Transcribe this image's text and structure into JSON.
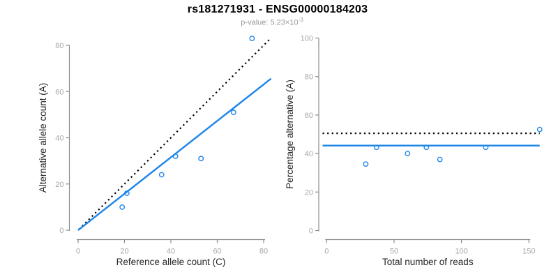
{
  "figure": {
    "title": "rs181271931 - ENSG00000184203",
    "subtitle_label": "p-value: ",
    "p_value_base": "5.23×10",
    "p_value_exponent": "-3"
  },
  "colors": {
    "accent_blue": "#1F87E8",
    "dotted_line_black": "#000000",
    "axis_line_gray": "#8C8C8C",
    "tick_label_gray": "#A6A6A6",
    "axis_title_dark": "#262626",
    "title_black": "#000000",
    "subtitle_gray": "#999999",
    "background_white": "#FFFFFF"
  },
  "chart_data": [
    {
      "type": "scatter",
      "name": "allele-counts-scatter",
      "title": "",
      "xlabel": "Reference allele count (C)",
      "ylabel": "Alternative allele count (A)",
      "xlim": [
        0,
        83
      ],
      "ylim": [
        0,
        83
      ],
      "xticks": [
        0,
        20,
        40,
        60,
        80
      ],
      "yticks": [
        0,
        20,
        40,
        60,
        80
      ],
      "grid": false,
      "legend": "none",
      "marker": "open-circle",
      "marker_color": "#1F87E8",
      "points": [
        [
          19,
          10
        ],
        [
          21,
          16
        ],
        [
          36,
          24
        ],
        [
          42,
          32
        ],
        [
          53,
          31
        ],
        [
          67,
          51
        ],
        [
          75,
          83
        ]
      ],
      "lines": [
        {
          "name": "identity-line",
          "style": "dotted",
          "color": "#000000",
          "from": [
            0.3,
            0.3
          ],
          "to": [
            82.5,
            82.5
          ]
        },
        {
          "name": "fitted-ratio-line",
          "style": "solid",
          "color": "#1F87E8",
          "from": [
            0,
            0
          ],
          "to": [
            83.2,
            65.6
          ]
        }
      ]
    },
    {
      "type": "scatter",
      "name": "percentage-vs-reads-scatter",
      "title": "",
      "xlabel": "Total number of reads",
      "ylabel": "Percentage alternative (A)",
      "xlim": [
        0,
        158
      ],
      "ylim": [
        0,
        100
      ],
      "xticks": [
        0,
        50,
        100,
        150
      ],
      "yticks": [
        0,
        20,
        40,
        60,
        80,
        100
      ],
      "grid": false,
      "legend": "none",
      "marker": "open-circle",
      "marker_color": "#1F87E8",
      "points": [
        [
          29,
          34.5
        ],
        [
          37,
          43.2
        ],
        [
          60,
          40
        ],
        [
          74,
          43.2
        ],
        [
          84,
          36.9
        ],
        [
          118,
          43.2
        ],
        [
          158,
          52.5
        ]
      ],
      "lines": [
        {
          "name": "expected-50pct-line",
          "style": "dotted",
          "color": "#000000",
          "from": [
            -3,
            50.5
          ],
          "to": [
            158,
            50.5
          ]
        },
        {
          "name": "mean-percentage-line",
          "style": "solid",
          "color": "#1F87E8",
          "from": [
            -3,
            44.1
          ],
          "to": [
            158,
            44.1
          ]
        }
      ]
    }
  ]
}
